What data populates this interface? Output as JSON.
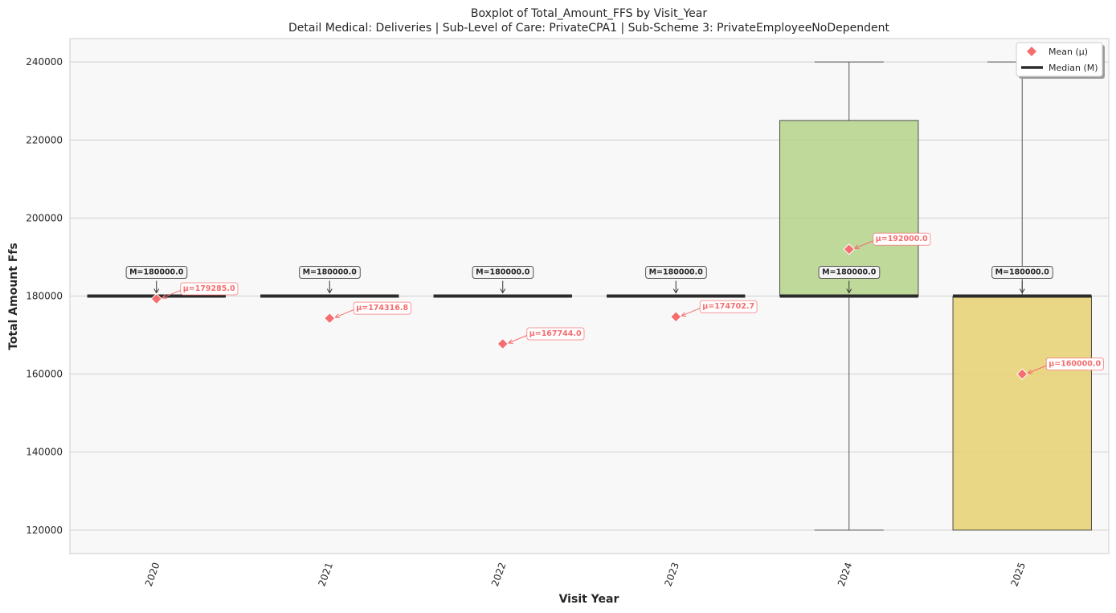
{
  "chart_data": {
    "type": "box",
    "title": "Boxplot of Total_Amount_FFS by Visit_Year",
    "subtitle": "Detail Medical: Deliveries | Sub-Level of Care: PrivateCPA1 | Sub-Scheme 3: PrivateEmployeeNoDependent",
    "xlabel": "Visit Year",
    "ylabel": "Total Amount Ffs",
    "ylim": [
      114000,
      246000
    ],
    "yticks": [
      120000,
      140000,
      160000,
      180000,
      200000,
      220000,
      240000
    ],
    "grid": true,
    "legend_position": "top-right",
    "legend": [
      {
        "label": "Mean (μ)",
        "marker": "diamond",
        "color": "#f46d6f"
      },
      {
        "label": "Median (M)",
        "marker": "line",
        "color": "#2b2b2b"
      }
    ],
    "categories": [
      "2020",
      "2021",
      "2022",
      "2023",
      "2024",
      "2025"
    ],
    "boxes": [
      {
        "year": "2020",
        "q1": 180000,
        "median": 180000,
        "q3": 180000,
        "whisker_low": 180000,
        "whisker_high": 180000,
        "mean": 179285.0,
        "color": "#7fb2e0",
        "median_label": "M=180000.0",
        "mean_label": "μ=179285.0"
      },
      {
        "year": "2021",
        "q1": 180000,
        "median": 180000,
        "q3": 180000,
        "whisker_low": 180000,
        "whisker_high": 180000,
        "mean": 174316.8,
        "color": "#9ad29a",
        "median_label": "M=180000.0",
        "mean_label": "μ=174316.8"
      },
      {
        "year": "2022",
        "q1": 180000,
        "median": 180000,
        "q3": 180000,
        "whisker_low": 180000,
        "whisker_high": 180000,
        "mean": 167744.0,
        "color": "#f4a5a5",
        "median_label": "M=180000.0",
        "mean_label": "μ=167744.0"
      },
      {
        "year": "2023",
        "q1": 180000,
        "median": 180000,
        "q3": 180000,
        "whisker_low": 180000,
        "whisker_high": 180000,
        "mean": 174702.7,
        "color": "#c9b3e6",
        "median_label": "M=180000.0",
        "mean_label": "μ=174702.7"
      },
      {
        "year": "2024",
        "q1": 180000,
        "median": 180000,
        "q3": 225000,
        "whisker_low": 120000,
        "whisker_high": 240000,
        "mean": 192000.0,
        "color": "#b5d389",
        "median_label": "M=180000.0",
        "mean_label": "μ=192000.0"
      },
      {
        "year": "2025",
        "q1": 120000,
        "median": 180000,
        "q3": 180000,
        "whisker_low": 120000,
        "whisker_high": 240000,
        "mean": 160000.0,
        "color": "#e8d171",
        "median_label": "M=180000.0",
        "mean_label": "μ=160000.0"
      }
    ],
    "colors": {
      "plot_background": "#f8f8f8",
      "grid": "#cfcfcf",
      "median": "#2b2b2b",
      "mean": "#f46d6f",
      "whisker": "#555555",
      "box_edge": "#4a4a4a"
    }
  }
}
